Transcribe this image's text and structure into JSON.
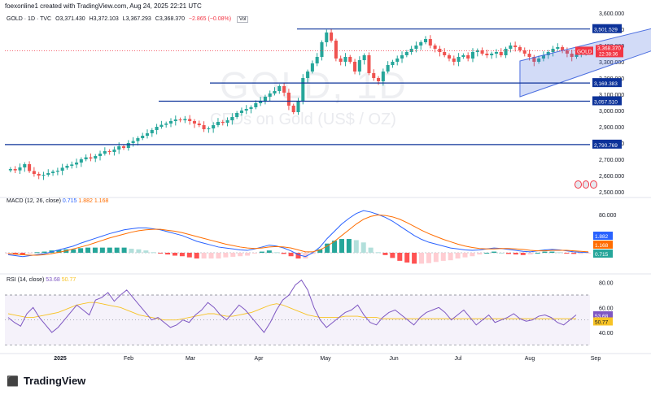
{
  "header": {
    "title": "foexonline1 created with TradingView.com, Aug 24, 2025 22:21 UTC"
  },
  "symbol": {
    "name": "GOLD · 1D · TVC",
    "open": "O3,371.430",
    "high": "H3,372.103",
    "low": "L3,367.293",
    "close": "C3,368.370",
    "change": "−2.865 (−0.08%)",
    "vol": "Vol"
  },
  "watermark": {
    "main": "GOLD, 1D",
    "sub": "CFDs on Gold (US$ / OZ)"
  },
  "colors": {
    "up": "#26a69a",
    "down": "#ef5350",
    "line": "#0c3299",
    "channel": "#4c6fe0",
    "rsi": "#7e57c2"
  },
  "price_tag": {
    "symbol": "GOLD",
    "price": "3,368.370",
    "time": "22:38:36"
  },
  "level_labels": [
    "3,501.529",
    "3,169.383",
    "3,057.510",
    "2,790.769"
  ],
  "macd": {
    "label": "MACD (12, 26, close)",
    "macd": "0.715",
    "signal": "1.882",
    "hist": "1.168"
  },
  "rsi": {
    "label": "RSI (14, close)",
    "value": "53.68",
    "ma": "50.77"
  },
  "footer": {
    "brand": "TradingView"
  },
  "chart_data": [
    {
      "type": "candlestick",
      "title": "GOLD, 1D",
      "x_labels": [
        "2025",
        "Feb",
        "Mar",
        "Apr",
        "May",
        "Jun",
        "Jul",
        "Aug",
        "Sep"
      ],
      "y_ticks": [
        2500,
        2600,
        2700,
        2800,
        2900,
        3000,
        3100,
        3200,
        3300,
        3400,
        3500,
        3600
      ],
      "y_tick_labels": [
        "2,500.000",
        "2,600.000",
        "2,700.000",
        "2,800.000",
        "2,900.000",
        "3,000.000",
        "3,100.000",
        "3,200.000",
        "3,300.000",
        "3,400.000",
        "3,500.000",
        "3,600.000"
      ],
      "ylim": [
        2480,
        3620
      ],
      "horizontal_levels": [
        3501.529,
        3169.383,
        3057.51,
        2790.769
      ],
      "close_series": [
        2640,
        2632,
        2650,
        2670,
        2628,
        2610,
        2600,
        2605,
        2615,
        2624,
        2630,
        2648,
        2660,
        2668,
        2680,
        2700,
        2712,
        2705,
        2720,
        2735,
        2750,
        2745,
        2760,
        2780,
        2770,
        2800,
        2812,
        2830,
        2845,
        2860,
        2880,
        2900,
        2912,
        2920,
        2935,
        2945,
        2940,
        2948,
        2935,
        2920,
        2910,
        2885,
        2890,
        2910,
        2930,
        2925,
        2940,
        2960,
        2985,
        3000,
        3010,
        3020,
        3045,
        3060,
        3085,
        3105,
        3120,
        3150,
        3110,
        3030,
        2990,
        3060,
        3200,
        3240,
        3290,
        3330,
        3420,
        3480,
        3430,
        3320,
        3300,
        3330,
        3300,
        3240,
        3310,
        3340,
        3230,
        3200,
        3180,
        3240,
        3280,
        3300,
        3320,
        3340,
        3360,
        3380,
        3400,
        3420,
        3440,
        3400,
        3380,
        3360,
        3340,
        3320,
        3300,
        3330,
        3340,
        3320,
        3360,
        3370,
        3350,
        3340,
        3350,
        3360,
        3340,
        3380,
        3400,
        3390,
        3370,
        3350,
        3330,
        3300,
        3320,
        3340,
        3360,
        3380,
        3390,
        3370,
        3350,
        3330,
        3345,
        3360,
        3368
      ],
      "channel": {
        "lower": [
          [
            108,
            3085
          ],
          [
            148,
            3490
          ]
        ],
        "upper": [
          [
            108,
            3305
          ],
          [
            148,
            3590
          ]
        ]
      }
    },
    {
      "type": "line",
      "title": "MACD (12, 26, close)",
      "y_ticks": [
        80
      ],
      "y_tick_labels": [
        "80.000"
      ],
      "series": [
        {
          "name": "MACD",
          "values": [
            -4,
            -6,
            -8,
            -6,
            -4,
            -2,
            2,
            6,
            10,
            14,
            20,
            25,
            30,
            35,
            40,
            44,
            48,
            50,
            52,
            52,
            50,
            48,
            44,
            40,
            36,
            30,
            24,
            20,
            16,
            12,
            10,
            8,
            6,
            5,
            8,
            12,
            16,
            14,
            10,
            4,
            -4,
            -8,
            0,
            12,
            30,
            45,
            60,
            72,
            82,
            88,
            85,
            80,
            74,
            66,
            56,
            46,
            36,
            28,
            22,
            18,
            14,
            10,
            8,
            6,
            5,
            6,
            8,
            10,
            9,
            7,
            5,
            3,
            2,
            4,
            6,
            7,
            6,
            4,
            2,
            1,
            1
          ]
        },
        {
          "name": "Signal",
          "values": [
            -2,
            -3,
            -4,
            -5,
            -5,
            -4,
            -2,
            1,
            4,
            8,
            12,
            16,
            21,
            26,
            31,
            35,
            39,
            43,
            46,
            48,
            49,
            49,
            47,
            45,
            42,
            38,
            34,
            30,
            26,
            22,
            18,
            15,
            12,
            10,
            9,
            10,
            12,
            13,
            12,
            10,
            6,
            2,
            2,
            6,
            14,
            24,
            36,
            48,
            60,
            70,
            76,
            79,
            78,
            75,
            70,
            63,
            55,
            47,
            40,
            34,
            28,
            23,
            18,
            14,
            11,
            9,
            8,
            8,
            9,
            9,
            8,
            7,
            5,
            4,
            4,
            5,
            5,
            5,
            4,
            3,
            2
          ]
        }
      ]
    },
    {
      "type": "line",
      "title": "RSI (14, close)",
      "y_ticks": [
        40,
        50.77,
        53.68,
        60,
        80
      ],
      "y_tick_labels": [
        "40.00",
        "50.77",
        "53.68",
        "60.00",
        "80.00"
      ],
      "ylim": [
        25,
        85
      ],
      "bands": [
        30,
        70
      ],
      "series": [
        {
          "name": "RSI",
          "values": [
            52,
            48,
            45,
            55,
            60,
            52,
            46,
            40,
            44,
            50,
            56,
            62,
            58,
            54,
            66,
            68,
            72,
            65,
            70,
            74,
            68,
            62,
            56,
            50,
            52,
            48,
            44,
            46,
            50,
            48,
            54,
            58,
            64,
            60,
            54,
            50,
            56,
            62,
            58,
            52,
            46,
            40,
            48,
            58,
            66,
            70,
            78,
            82,
            74,
            60,
            50,
            44,
            48,
            52,
            56,
            58,
            62,
            54,
            48,
            46,
            52,
            56,
            58,
            54,
            50,
            46,
            52,
            56,
            58,
            60,
            56,
            50,
            54,
            58,
            52,
            46,
            50,
            54,
            48,
            50,
            52,
            55,
            51,
            49,
            50,
            53,
            54,
            52,
            48,
            46,
            50,
            54
          ]
        },
        {
          "name": "RSI MA",
          "values": [
            55,
            54,
            53,
            52,
            52,
            53,
            54,
            55,
            56,
            58,
            60,
            62,
            63,
            64,
            64,
            63,
            62,
            61,
            60,
            58,
            56,
            54,
            53,
            52,
            51,
            50,
            50,
            50,
            51,
            52,
            53,
            54,
            55,
            55,
            54,
            53,
            53,
            54,
            55,
            56,
            58,
            60,
            62,
            63,
            62,
            60,
            58,
            56,
            54,
            53,
            52,
            52,
            52,
            52,
            53,
            53,
            53,
            52,
            52,
            52,
            51,
            51,
            51,
            51,
            51,
            51,
            51,
            51,
            51,
            51,
            51,
            51,
            51,
            51,
            51,
            51,
            51,
            51,
            51,
            51,
            51,
            51,
            51,
            51,
            51,
            51,
            51,
            51,
            51,
            51,
            51,
            51
          ]
        }
      ]
    }
  ]
}
